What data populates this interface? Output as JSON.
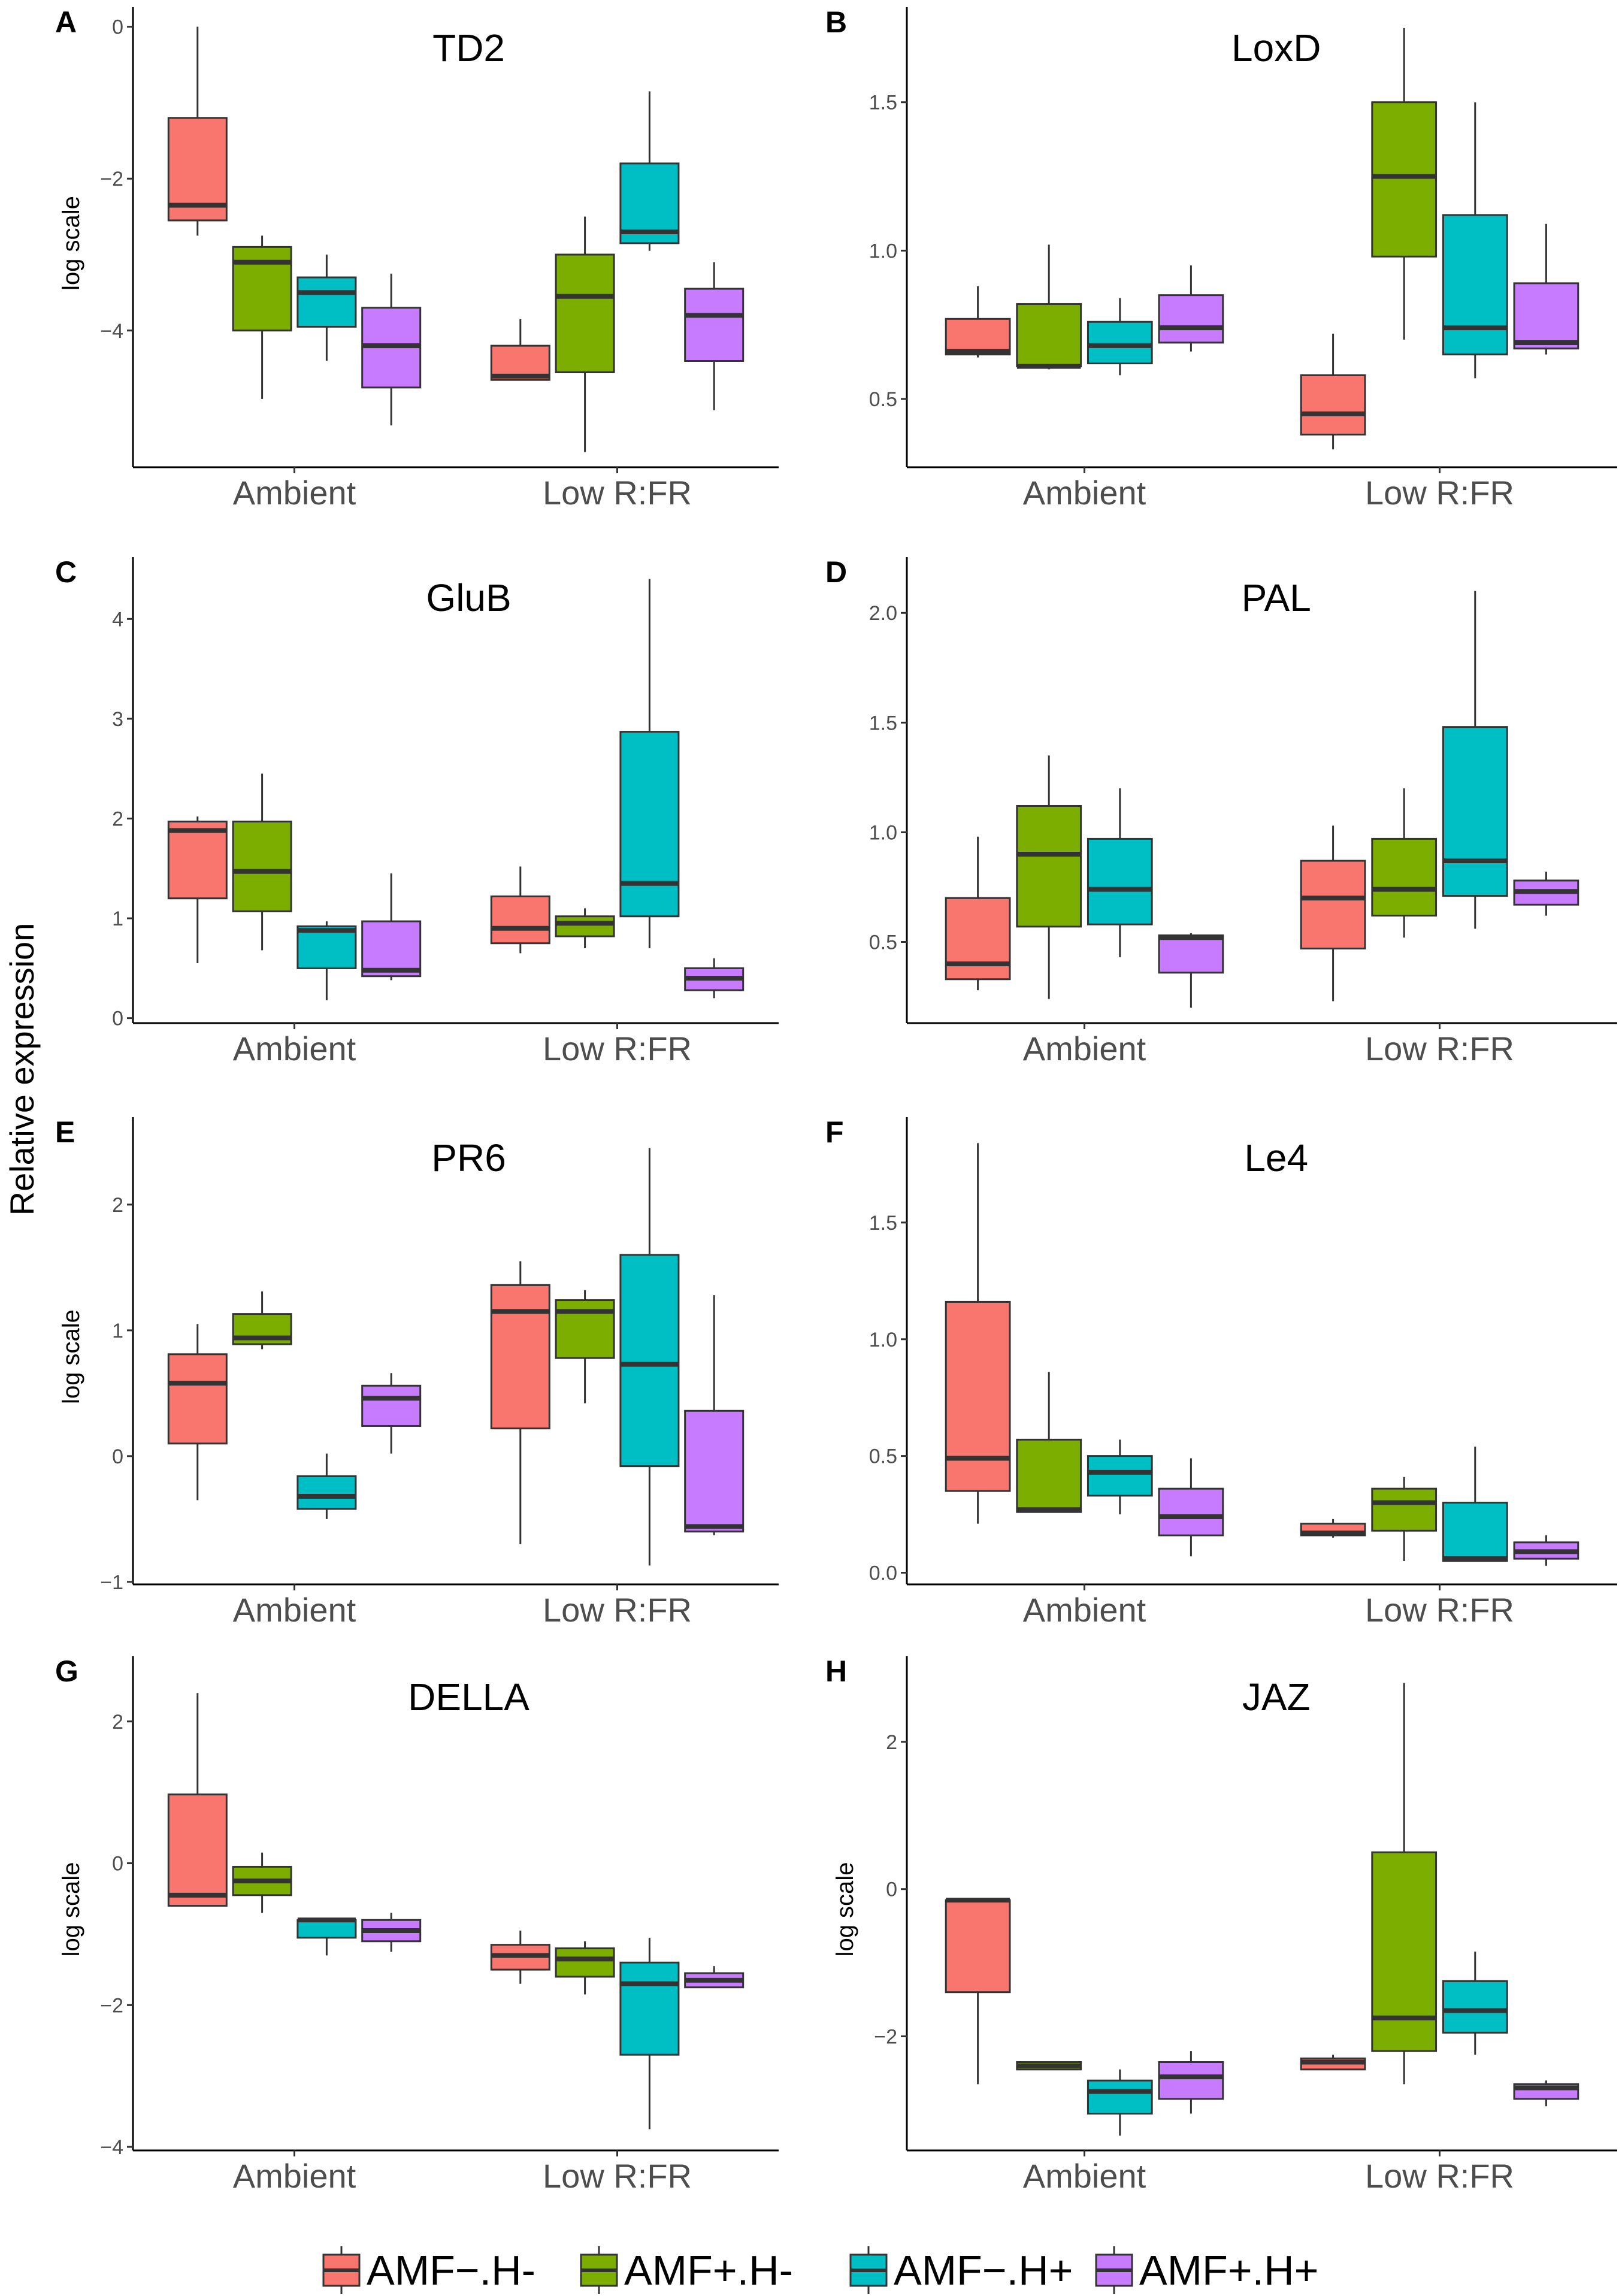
{
  "figure": {
    "shared_ylabel": "Relative expression",
    "legend": [
      "AMF−.H-",
      "AMF+.H-",
      "AMF−.H+",
      "AMF+.H+"
    ],
    "colors": [
      "#f8766d",
      "#7cae00",
      "#00bfc4",
      "#c77cff"
    ]
  },
  "chart_data": [
    {
      "type": "box",
      "panel": "A",
      "title": "TD2",
      "ylabel": "log scale",
      "categories": [
        "Ambient",
        "Low R:FR"
      ],
      "ylim": [
        -5.8,
        0.1
      ],
      "yticks": [
        0,
        -2,
        -4
      ],
      "series": [
        {
          "name": "AMF−.H-",
          "boxes": [
            {
              "min": -2.75,
              "q1": -2.55,
              "median": -2.35,
              "q3": -1.2,
              "max": 0.0
            },
            {
              "min": -4.65,
              "q1": -4.65,
              "median": -4.6,
              "q3": -4.2,
              "max": -3.85
            }
          ]
        },
        {
          "name": "AMF+.H-",
          "boxes": [
            {
              "min": -4.9,
              "q1": -4.0,
              "median": -3.1,
              "q3": -2.9,
              "max": -2.75
            },
            {
              "min": -5.6,
              "q1": -4.55,
              "median": -3.55,
              "q3": -3.0,
              "max": -2.5
            }
          ]
        },
        {
          "name": "AMF−.H+",
          "boxes": [
            {
              "min": -4.4,
              "q1": -3.95,
              "median": -3.5,
              "q3": -3.3,
              "max": -3.0
            },
            {
              "min": -2.95,
              "q1": -2.85,
              "median": -2.7,
              "q3": -1.8,
              "max": -0.85
            }
          ]
        },
        {
          "name": "AMF+.H+",
          "boxes": [
            {
              "min": -5.25,
              "q1": -4.75,
              "median": -4.2,
              "q3": -3.7,
              "max": -3.25
            },
            {
              "min": -5.05,
              "q1": -4.4,
              "median": -3.8,
              "q3": -3.45,
              "max": -3.1
            }
          ]
        }
      ]
    },
    {
      "type": "box",
      "panel": "B",
      "title": "LoxD",
      "ylabel": "",
      "categories": [
        "Ambient",
        "Low R:FR"
      ],
      "ylim": [
        0.27,
        1.78
      ],
      "yticks": [
        0.5,
        1.0,
        1.5
      ],
      "series": [
        {
          "name": "AMF−.H-",
          "boxes": [
            {
              "min": 0.64,
              "q1": 0.65,
              "median": 0.66,
              "q3": 0.77,
              "max": 0.88
            },
            {
              "min": 0.33,
              "q1": 0.38,
              "median": 0.45,
              "q3": 0.58,
              "max": 0.72
            }
          ]
        },
        {
          "name": "AMF+.H-",
          "boxes": [
            {
              "min": 0.6,
              "q1": 0.61,
              "median": 0.61,
              "q3": 0.82,
              "max": 1.02
            },
            {
              "min": 0.7,
              "q1": 0.98,
              "median": 1.25,
              "q3": 1.5,
              "max": 1.75
            }
          ]
        },
        {
          "name": "AMF−.H+",
          "boxes": [
            {
              "min": 0.58,
              "q1": 0.62,
              "median": 0.68,
              "q3": 0.76,
              "max": 0.84
            },
            {
              "min": 0.57,
              "q1": 0.65,
              "median": 0.74,
              "q3": 1.12,
              "max": 1.5
            }
          ]
        },
        {
          "name": "AMF+.H+",
          "boxes": [
            {
              "min": 0.66,
              "q1": 0.69,
              "median": 0.74,
              "q3": 0.85,
              "max": 0.95
            },
            {
              "min": 0.65,
              "q1": 0.67,
              "median": 0.69,
              "q3": 0.89,
              "max": 1.09
            }
          ]
        }
      ]
    },
    {
      "type": "box",
      "panel": "C",
      "title": "GluB",
      "ylabel": "",
      "categories": [
        "Ambient",
        "Low R:FR"
      ],
      "ylim": [
        -0.05,
        4.5
      ],
      "yticks": [
        0,
        1,
        2,
        3,
        4
      ],
      "series": [
        {
          "name": "AMF−.H-",
          "boxes": [
            {
              "min": 0.55,
              "q1": 1.2,
              "median": 1.88,
              "q3": 1.97,
              "max": 2.02
            },
            {
              "min": 0.65,
              "q1": 0.75,
              "median": 0.9,
              "q3": 1.22,
              "max": 1.52
            }
          ]
        },
        {
          "name": "AMF+.H-",
          "boxes": [
            {
              "min": 0.68,
              "q1": 1.07,
              "median": 1.47,
              "q3": 1.97,
              "max": 2.45
            },
            {
              "min": 0.7,
              "q1": 0.82,
              "median": 0.95,
              "q3": 1.02,
              "max": 1.1
            }
          ]
        },
        {
          "name": "AMF−.H+",
          "boxes": [
            {
              "min": 0.18,
              "q1": 0.5,
              "median": 0.88,
              "q3": 0.92,
              "max": 0.97
            },
            {
              "min": 0.7,
              "q1": 1.02,
              "median": 1.35,
              "q3": 2.87,
              "max": 4.4
            }
          ]
        },
        {
          "name": "AMF+.H+",
          "boxes": [
            {
              "min": 0.38,
              "q1": 0.42,
              "median": 0.48,
              "q3": 0.97,
              "max": 1.45
            },
            {
              "min": 0.2,
              "q1": 0.28,
              "median": 0.4,
              "q3": 0.5,
              "max": 0.6
            }
          ]
        }
      ]
    },
    {
      "type": "box",
      "panel": "D",
      "title": "PAL",
      "ylabel": "",
      "categories": [
        "Ambient",
        "Low R:FR"
      ],
      "ylim": [
        0.13,
        2.2
      ],
      "yticks": [
        0.5,
        1.0,
        1.5,
        2.0
      ],
      "series": [
        {
          "name": "AMF−.H-",
          "boxes": [
            {
              "min": 0.28,
              "q1": 0.33,
              "median": 0.4,
              "q3": 0.7,
              "max": 0.98
            },
            {
              "min": 0.23,
              "q1": 0.47,
              "median": 0.7,
              "q3": 0.87,
              "max": 1.03
            }
          ]
        },
        {
          "name": "AMF+.H-",
          "boxes": [
            {
              "min": 0.24,
              "q1": 0.57,
              "median": 0.9,
              "q3": 1.12,
              "max": 1.35
            },
            {
              "min": 0.52,
              "q1": 0.62,
              "median": 0.74,
              "q3": 0.97,
              "max": 1.2
            }
          ]
        },
        {
          "name": "AMF−.H+",
          "boxes": [
            {
              "min": 0.43,
              "q1": 0.58,
              "median": 0.74,
              "q3": 0.97,
              "max": 1.2
            },
            {
              "min": 0.56,
              "q1": 0.71,
              "median": 0.87,
              "q3": 1.48,
              "max": 2.1
            }
          ]
        },
        {
          "name": "AMF+.H+",
          "boxes": [
            {
              "min": 0.2,
              "q1": 0.36,
              "median": 0.52,
              "q3": 0.53,
              "max": 0.54
            },
            {
              "min": 0.62,
              "q1": 0.67,
              "median": 0.73,
              "q3": 0.78,
              "max": 0.82
            }
          ]
        }
      ]
    },
    {
      "type": "box",
      "panel": "E",
      "title": "PR6",
      "ylabel": "log scale",
      "categories": [
        "Ambient",
        "Low R:FR"
      ],
      "ylim": [
        -1.02,
        2.6
      ],
      "yticks": [
        -1,
        0,
        1,
        2
      ],
      "series": [
        {
          "name": "AMF−.H-",
          "boxes": [
            {
              "min": -0.35,
              "q1": 0.1,
              "median": 0.58,
              "q3": 0.81,
              "max": 1.05
            },
            {
              "min": -0.7,
              "q1": 0.22,
              "median": 1.15,
              "q3": 1.36,
              "max": 1.55
            }
          ]
        },
        {
          "name": "AMF+.H-",
          "boxes": [
            {
              "min": 0.85,
              "q1": 0.89,
              "median": 0.94,
              "q3": 1.13,
              "max": 1.31
            },
            {
              "min": 0.42,
              "q1": 0.78,
              "median": 1.15,
              "q3": 1.24,
              "max": 1.32
            }
          ]
        },
        {
          "name": "AMF−.H+",
          "boxes": [
            {
              "min": -0.5,
              "q1": -0.42,
              "median": -0.32,
              "q3": -0.16,
              "max": 0.02
            },
            {
              "min": -0.87,
              "q1": -0.08,
              "median": 0.73,
              "q3": 1.6,
              "max": 2.45
            }
          ]
        },
        {
          "name": "AMF+.H+",
          "boxes": [
            {
              "min": 0.02,
              "q1": 0.24,
              "median": 0.46,
              "q3": 0.56,
              "max": 0.66
            },
            {
              "min": -0.63,
              "q1": -0.6,
              "median": -0.56,
              "q3": 0.36,
              "max": 1.28
            }
          ]
        }
      ]
    },
    {
      "type": "box",
      "panel": "F",
      "title": "Le4",
      "ylabel": "",
      "categories": [
        "Ambient",
        "Low R:FR"
      ],
      "ylim": [
        -0.05,
        1.9
      ],
      "yticks": [
        0.0,
        0.5,
        1.0,
        1.5
      ],
      "series": [
        {
          "name": "AMF−.H-",
          "boxes": [
            {
              "min": 0.21,
              "q1": 0.35,
              "median": 0.49,
              "q3": 1.16,
              "max": 1.84
            },
            {
              "min": 0.15,
              "q1": 0.16,
              "median": 0.17,
              "q3": 0.21,
              "max": 0.23
            }
          ]
        },
        {
          "name": "AMF+.H-",
          "boxes": [
            {
              "min": 0.26,
              "q1": 0.26,
              "median": 0.27,
              "q3": 0.57,
              "max": 0.86
            },
            {
              "min": 0.05,
              "q1": 0.18,
              "median": 0.3,
              "q3": 0.36,
              "max": 0.41
            }
          ]
        },
        {
          "name": "AMF−.H+",
          "boxes": [
            {
              "min": 0.25,
              "q1": 0.33,
              "median": 0.43,
              "q3": 0.5,
              "max": 0.57
            },
            {
              "min": 0.05,
              "q1": 0.05,
              "median": 0.06,
              "q3": 0.3,
              "max": 0.54
            }
          ]
        },
        {
          "name": "AMF+.H+",
          "boxes": [
            {
              "min": 0.07,
              "q1": 0.16,
              "median": 0.24,
              "q3": 0.36,
              "max": 0.49
            },
            {
              "min": 0.03,
              "q1": 0.06,
              "median": 0.09,
              "q3": 0.13,
              "max": 0.16
            }
          ]
        }
      ]
    },
    {
      "type": "box",
      "panel": "G",
      "title": "DELLA",
      "ylabel": "log scale",
      "categories": [
        "Ambient",
        "Low R:FR"
      ],
      "ylim": [
        -4.05,
        2.75
      ],
      "yticks": [
        2,
        0,
        -2,
        -4
      ],
      "series": [
        {
          "name": "AMF−.H-",
          "boxes": [
            {
              "min": -0.6,
              "q1": -0.6,
              "median": -0.45,
              "q3": 0.97,
              "max": 2.4
            },
            {
              "min": -1.7,
              "q1": -1.5,
              "median": -1.3,
              "q3": -1.15,
              "max": -0.95
            }
          ]
        },
        {
          "name": "AMF+.H-",
          "boxes": [
            {
              "min": -0.7,
              "q1": -0.45,
              "median": -0.25,
              "q3": -0.05,
              "max": 0.15
            },
            {
              "min": -1.85,
              "q1": -1.6,
              "median": -1.35,
              "q3": -1.2,
              "max": -1.1
            }
          ]
        },
        {
          "name": "AMF−.H+",
          "boxes": [
            {
              "min": -1.3,
              "q1": -1.05,
              "median": -0.8,
              "q3": -0.8,
              "max": -0.8
            },
            {
              "min": -3.75,
              "q1": -2.7,
              "median": -1.7,
              "q3": -1.4,
              "max": -1.05
            }
          ]
        },
        {
          "name": "AMF+.H+",
          "boxes": [
            {
              "min": -1.25,
              "q1": -1.1,
              "median": -0.95,
              "q3": -0.8,
              "max": -0.7
            },
            {
              "min": -1.75,
              "q1": -1.75,
              "median": -1.65,
              "q3": -1.55,
              "max": -1.45
            }
          ]
        }
      ]
    },
    {
      "type": "box",
      "panel": "H",
      "title": "JAZ",
      "ylabel": "log scale",
      "categories": [
        "Ambient",
        "Low R:FR"
      ],
      "ylim": [
        -3.55,
        3.0
      ],
      "yticks": [
        2,
        0,
        -2
      ],
      "series": [
        {
          "name": "AMF−.H-",
          "boxes": [
            {
              "min": -2.65,
              "q1": -1.4,
              "median": -0.15,
              "q3": -0.15,
              "max": -0.15
            },
            {
              "min": -2.45,
              "q1": -2.45,
              "median": -2.35,
              "q3": -2.3,
              "max": -2.25
            }
          ]
        },
        {
          "name": "AMF+.H-",
          "boxes": [
            {
              "min": -2.45,
              "q1": -2.45,
              "median": -2.4,
              "q3": -2.35,
              "max": -2.35
            },
            {
              "min": -2.65,
              "q1": -2.2,
              "median": -1.75,
              "q3": 0.5,
              "max": 2.8
            }
          ]
        },
        {
          "name": "AMF−.H+",
          "boxes": [
            {
              "min": -3.35,
              "q1": -3.05,
              "median": -2.75,
              "q3": -2.6,
              "max": -2.45
            },
            {
              "min": -2.25,
              "q1": -1.95,
              "median": -1.65,
              "q3": -1.25,
              "max": -0.85
            }
          ]
        },
        {
          "name": "AMF+.H+",
          "boxes": [
            {
              "min": -3.05,
              "q1": -2.85,
              "median": -2.55,
              "q3": -2.35,
              "max": -2.2
            },
            {
              "min": -2.95,
              "q1": -2.85,
              "median": -2.7,
              "q3": -2.65,
              "max": -2.6
            }
          ]
        }
      ]
    }
  ]
}
